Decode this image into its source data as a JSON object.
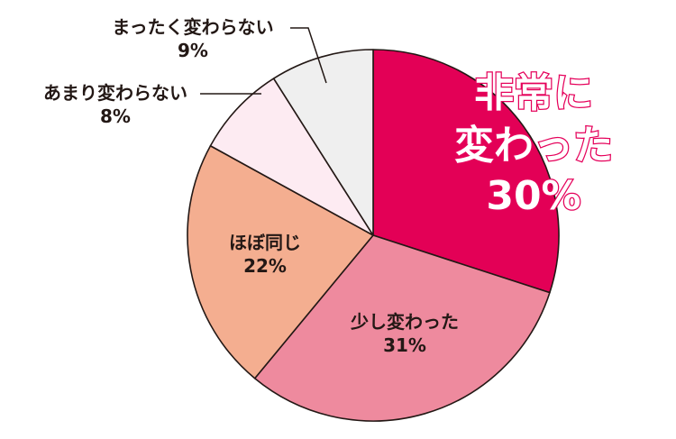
{
  "chart_data": {
    "type": "pie",
    "slices": [
      {
        "label": "非常に変わった",
        "label_lines": [
          "非常に",
          "変わった"
        ],
        "value": 30,
        "value_text": "30%",
        "color": "#e30056"
      },
      {
        "label": "少し変わった",
        "label_lines": [
          "少し変わった"
        ],
        "value": 31,
        "value_text": "31%",
        "color": "#ee8a9e"
      },
      {
        "label": "ほぼ同じ",
        "label_lines": [
          "ほぼ同じ"
        ],
        "value": 22,
        "value_text": "22%",
        "color": "#f4ae90"
      },
      {
        "label": "あまり変わらない",
        "label_lines": [
          "あまり変わらない"
        ],
        "value": 8,
        "value_text": "8%",
        "color": "#fdebf2"
      },
      {
        "label": "まったく変わらない",
        "label_lines": [
          "まったく変わらない"
        ],
        "value": 9,
        "value_text": "9%",
        "color": "#efefef"
      }
    ],
    "start_angle_deg": 0,
    "direction": "clockwise",
    "outline_color": "#231815"
  }
}
